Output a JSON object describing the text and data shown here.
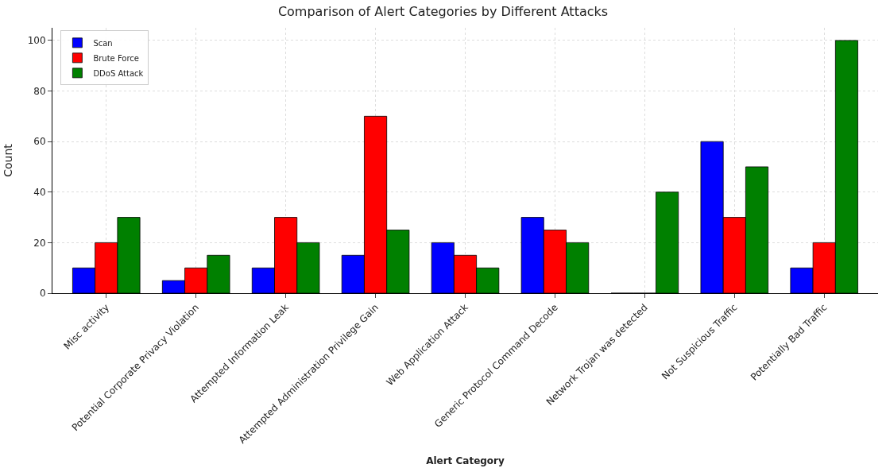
{
  "chart_data": {
    "type": "bar",
    "title": "Comparison of Alert Categories by Different Attacks",
    "xlabel": "Alert Category",
    "ylabel": "Count",
    "categories": [
      "Misc activity",
      "Potential Corporate Privacy Violation",
      "Attempted Information Leak",
      "Attempted Administration Privilege Gain",
      "Web Application Attack",
      "Generic Protocol Command Decode",
      "Network Trojan was detected",
      "Not Suspicious Traffic",
      "Potentially Bad Traffic"
    ],
    "series": [
      {
        "name": "Scan",
        "color": "#0000ff",
        "values": [
          10,
          5,
          10,
          15,
          20,
          30,
          0,
          60,
          10
        ]
      },
      {
        "name": "Brute Force",
        "color": "#ff0000",
        "values": [
          20,
          10,
          30,
          70,
          15,
          25,
          0,
          30,
          20
        ]
      },
      {
        "name": "DDoS Attack",
        "color": "#008000",
        "values": [
          30,
          15,
          20,
          25,
          10,
          20,
          40,
          50,
          100
        ]
      }
    ],
    "ylim": [
      0,
      105
    ],
    "yticks": [
      0,
      20,
      40,
      60,
      80,
      100
    ],
    "grid": true,
    "legend": "top left"
  }
}
